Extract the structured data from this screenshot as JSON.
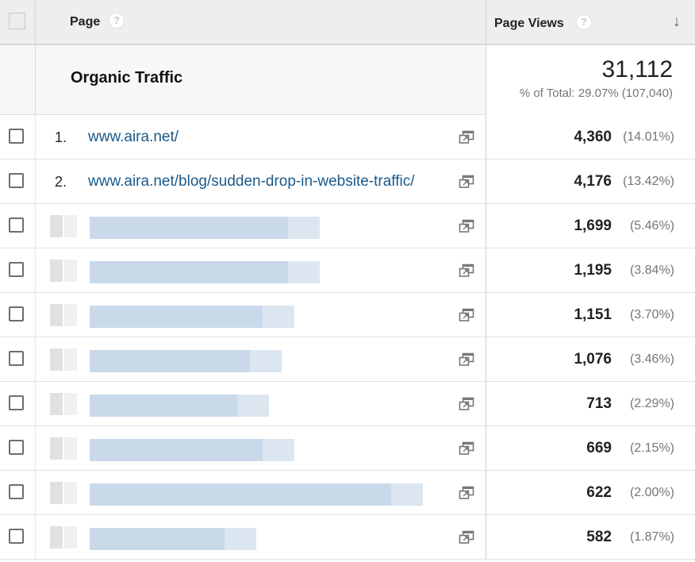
{
  "header": {
    "page_label": "Page",
    "page_views_label": "Page Views",
    "help_glyph": "?",
    "sort_glyph": "↓"
  },
  "summary": {
    "segment_label": "Organic Traffic",
    "total": "31,112",
    "pct_text": "% of Total: 29.07% (107,040)"
  },
  "rows": [
    {
      "index": "1.",
      "page": "www.aira.net/",
      "views": "4,360",
      "pct": "(14.01%)",
      "blurred": false
    },
    {
      "index": "2.",
      "page": "www.aira.net/blog/sudden-drop-in-website-traffic/",
      "views": "4,176",
      "pct": "(13.42%)",
      "blurred": false
    },
    {
      "views": "1,699",
      "pct": "(5.46%)",
      "blurred": true
    },
    {
      "views": "1,195",
      "pct": "(3.84%)",
      "blurred": true
    },
    {
      "views": "1,151",
      "pct": "(3.70%)",
      "blurred": true
    },
    {
      "views": "1,076",
      "pct": "(3.46%)",
      "blurred": true
    },
    {
      "views": "713",
      "pct": "(2.29%)",
      "blurred": true
    },
    {
      "views": "669",
      "pct": "(2.15%)",
      "blurred": true
    },
    {
      "views": "622",
      "pct": "(2.00%)",
      "blurred": true
    },
    {
      "views": "582",
      "pct": "(1.87%)",
      "blurred": true
    }
  ],
  "icons": {
    "external_link": "open-in-new-window-icon",
    "help": "help-icon",
    "sort": "sort-descending-icon"
  },
  "colors": {
    "link": "#1a5a8a",
    "header_bg": "#eeeeee",
    "summary_bg": "#f7f7f7"
  }
}
